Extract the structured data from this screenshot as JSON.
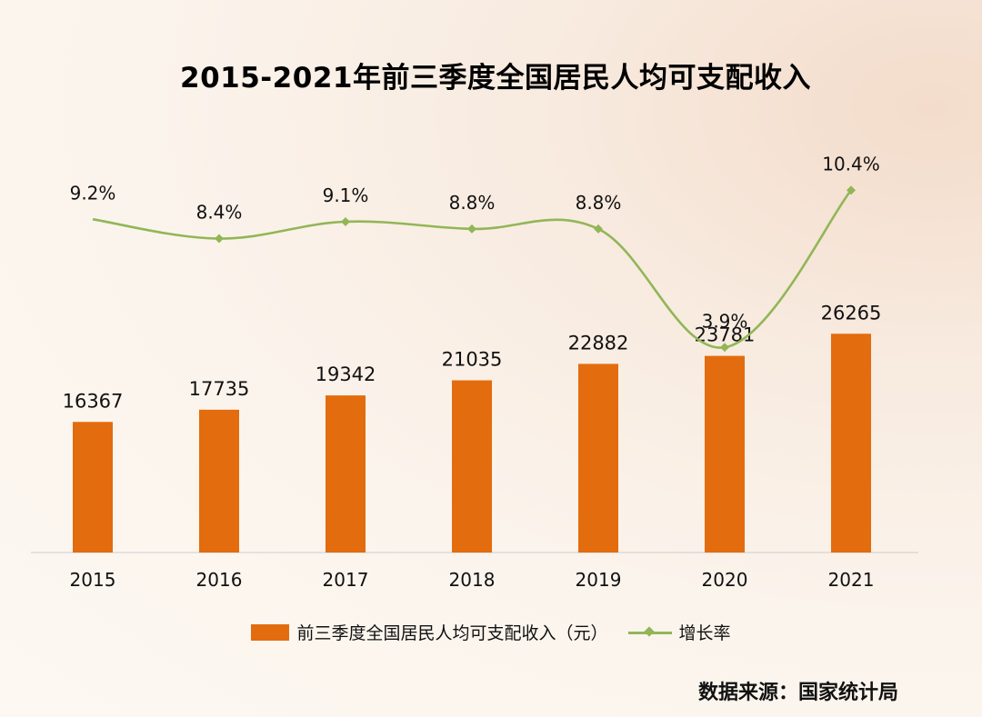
{
  "colors": {
    "bar": "#e36c0e",
    "line": "#92b657",
    "axis": "#cccccc"
  },
  "chart_data": {
    "type": "bar",
    "title": "2015-2021年前三季度全国居民人均可支配收入",
    "categories": [
      "2015",
      "2016",
      "2017",
      "2018",
      "2019",
      "2020",
      "2021"
    ],
    "series": [
      {
        "name": "前三季度全国居民人均可支配收入（元）",
        "type": "bar",
        "values": [
          16367,
          17735,
          19342,
          21035,
          22882,
          23781,
          26265
        ],
        "labels": [
          "16367",
          "17735",
          "19342",
          "21035",
          "22882",
          "23781",
          "26265"
        ]
      },
      {
        "name": "增长率",
        "type": "line",
        "marker": "diamond",
        "smooth": true,
        "values": [
          9.2,
          8.4,
          9.1,
          8.8,
          8.8,
          3.9,
          10.4
        ],
        "labels": [
          "9.2%",
          "8.4%",
          "9.1%",
          "8.8%",
          "8.8%",
          "3.9%",
          "10.4%"
        ]
      }
    ],
    "legend": "bottom",
    "grid": false
  },
  "source": "数据来源：国家统计局"
}
